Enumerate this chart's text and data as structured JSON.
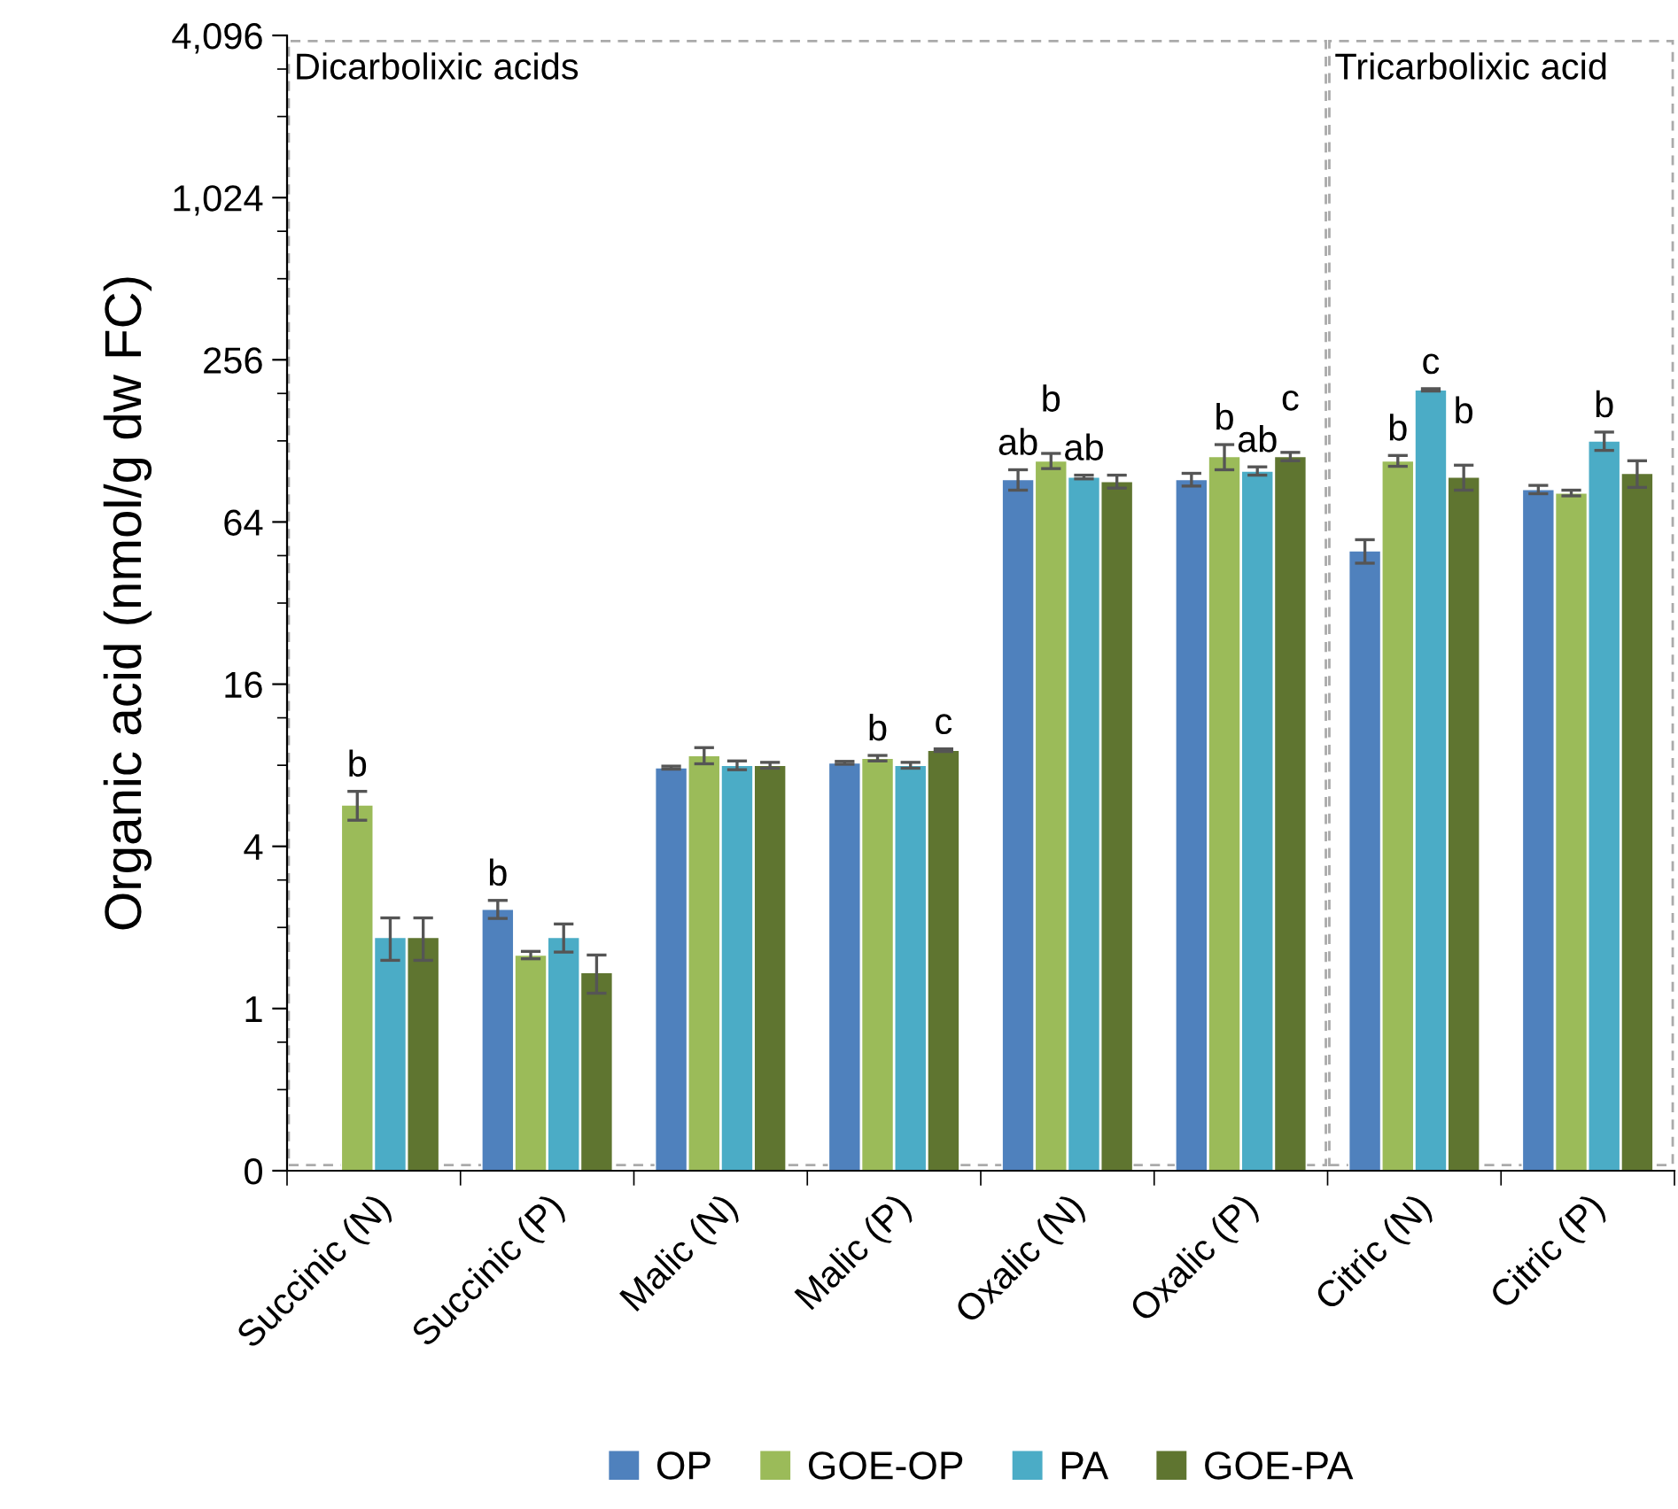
{
  "chart_data": {
    "type": "bar",
    "ylabel": "Organic acid (nmol/g dw FC)",
    "log": true,
    "legend": "bottom",
    "grid": false,
    "categories": [
      "Succinic (N)",
      "Succinic (P)",
      "Malic (N)",
      "Malic (P)",
      "Oxalic (N)",
      "Oxalic (P)",
      "Citric (N)",
      "Citric (P)"
    ],
    "ylim": [
      0.25,
      4096
    ],
    "yticks": [
      {
        "value": 0.25,
        "label": "0"
      },
      {
        "value": 0.5,
        "label": null
      },
      {
        "value": 0.75,
        "label": null
      },
      1,
      {
        "value": 2,
        "label": null
      },
      {
        "value": 3,
        "label": null
      },
      4,
      {
        "value": 8,
        "label": null
      },
      {
        "value": 12,
        "label": null
      },
      16,
      {
        "value": 32,
        "label": null
      },
      {
        "value": 48,
        "label": null
      },
      64,
      {
        "value": 128,
        "label": null
      },
      {
        "value": 192,
        "label": null
      },
      256,
      {
        "value": 512,
        "label": null
      },
      {
        "value": 768,
        "label": null
      },
      {
        "value": 1024,
        "label": "1,024"
      },
      {
        "value": 2048,
        "label": null
      },
      {
        "value": 3072,
        "label": null
      },
      {
        "value": 4096,
        "label": "4,096"
      }
    ],
    "series": [
      {
        "name": "OP",
        "color": "#4f81bd",
        "values": [
          null,
          2.34,
          7.84,
          8.17,
          92,
          92,
          50,
          84.5
        ],
        "errors": [
          null,
          0.18,
          0.1,
          0.1,
          8,
          5,
          5,
          3
        ],
        "value_labels": [
          null,
          "b",
          null,
          null,
          "ab",
          null,
          null,
          null
        ]
      },
      {
        "name": "GOE-OP",
        "color": "#9bbb59",
        "values": [
          5.7,
          1.58,
          8.7,
          8.5,
          108,
          112,
          108,
          82
        ],
        "errors": [
          0.7,
          0.05,
          0.6,
          0.2,
          7,
          12,
          5,
          2
        ],
        "value_labels": [
          "b",
          null,
          null,
          "b",
          "b",
          "b",
          "b",
          null
        ]
      },
      {
        "name": "PA",
        "color": "#4bacc6",
        "values": [
          1.84,
          1.84,
          8,
          8,
          94,
          99,
          198,
          128
        ],
        "errors": [
          0.33,
          0.22,
          0.3,
          0.2,
          1.5,
          3.5,
          2,
          10
        ],
        "value_labels": [
          null,
          null,
          null,
          null,
          "ab",
          "ab",
          "c",
          "b"
        ]
      },
      {
        "name": "GOE-PA",
        "color": "#5f7530",
        "values": [
          1.84,
          1.36,
          8,
          9.1,
          90.5,
          112,
          94,
          97
        ],
        "errors": [
          0.33,
          0.22,
          0.2,
          0.1,
          5,
          4,
          10,
          11
        ],
        "value_labels": [
          null,
          null,
          null,
          "c",
          null,
          "c",
          "b",
          null
        ]
      }
    ],
    "annotations": [
      "Dicarbolixic acids",
      "Tricarbolixic acid"
    ]
  }
}
